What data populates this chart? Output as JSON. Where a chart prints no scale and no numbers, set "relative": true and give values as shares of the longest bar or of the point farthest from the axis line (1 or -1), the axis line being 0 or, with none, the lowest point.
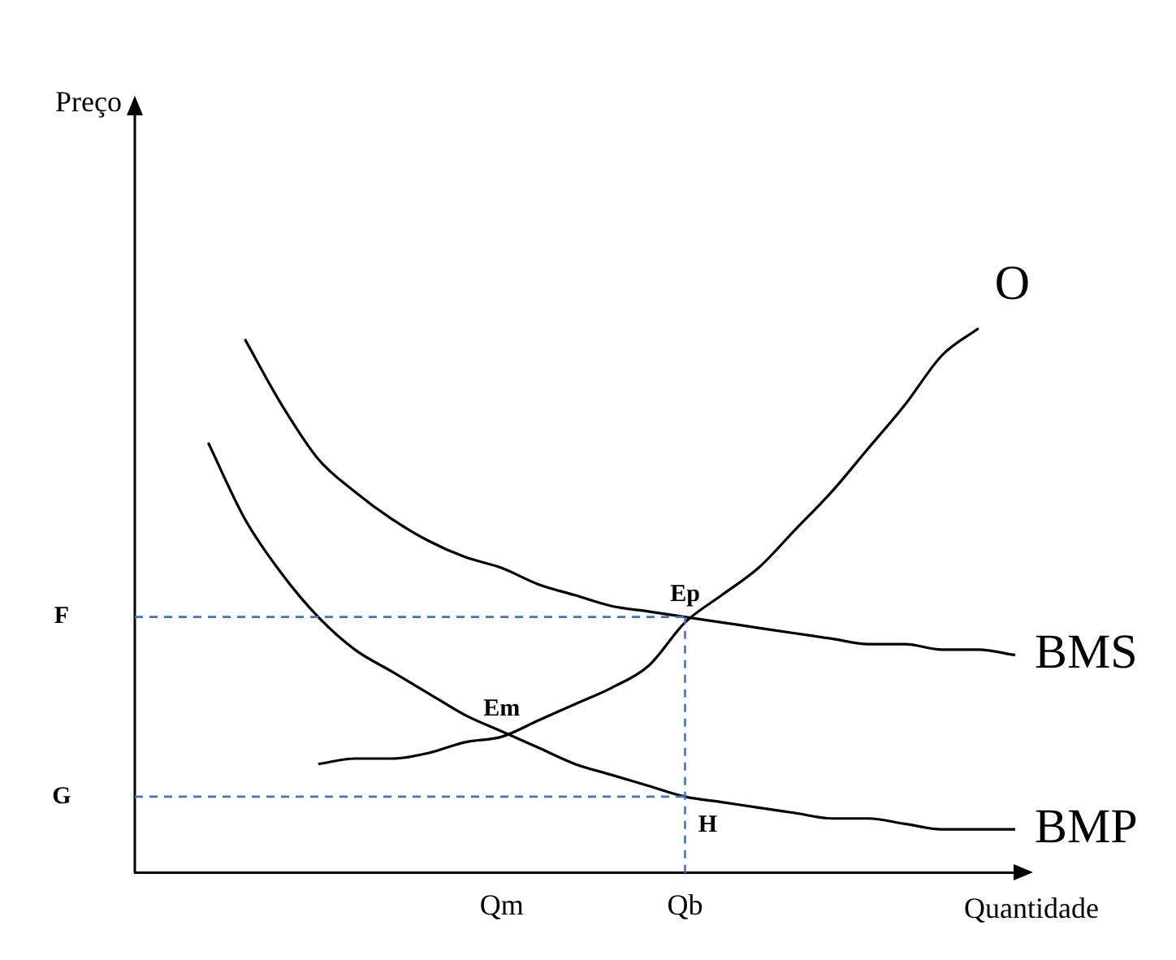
{
  "chart_data": {
    "type": "line",
    "relative": true,
    "xlabel": "Quantidade",
    "categories": [
      null,
      null,
      null,
      null,
      null,
      null,
      null,
      null,
      null,
      null,
      "Qm",
      null,
      null,
      null,
      null,
      "Qb",
      null,
      null,
      null,
      null,
      null,
      null,
      null,
      null,
      null
    ],
    "series": [
      {
        "name": "O",
        "color": "#000000",
        "values": [
          null,
          null,
          null,
          null,
          null,
          0.2,
          0.21,
          0.21,
          0.22,
          0.24,
          0.25,
          0.28,
          0.31,
          0.34,
          0.38,
          0.46,
          0.51,
          0.56,
          0.63,
          0.7,
          0.78,
          0.86,
          0.95,
          1,
          null
        ]
      },
      {
        "name": "BMS",
        "color": "#000000",
        "values": [
          null,
          null,
          null,
          0.98,
          0.86,
          0.76,
          0.7,
          0.65,
          0.61,
          0.58,
          0.56,
          0.53,
          0.51,
          0.49,
          0.48,
          0.47,
          0.46,
          0.45,
          0.44,
          0.43,
          0.42,
          0.42,
          0.41,
          0.41,
          0.4
        ]
      },
      {
        "name": "BMP",
        "color": "#000000",
        "values": [
          null,
          null,
          0.79,
          0.65,
          0.55,
          0.47,
          0.41,
          0.37,
          0.33,
          0.29,
          0.26,
          0.23,
          0.2,
          0.18,
          0.16,
          0.14,
          0.13,
          0.12,
          0.11,
          0.1,
          0.1,
          0.09,
          0.08,
          0.08,
          0.08
        ]
      }
    ],
    "ref_lines": [
      {
        "axis": "y",
        "value": 0.47,
        "label": "F",
        "color": "#4472c4",
        "line_style": "dashed"
      },
      {
        "axis": "y",
        "value": 0.14,
        "label": "G",
        "color": "#4472c4",
        "line_style": "dashed"
      },
      {
        "axis": "x",
        "value": "Qb",
        "color": "#4472c4",
        "line_style": "dashed"
      }
    ],
    "annotations": [
      "Preço",
      {
        "text": "Ep",
        "x": "Qb",
        "y": 0.47
      },
      {
        "text": "Em",
        "x": "Qm",
        "y": 0.26
      },
      {
        "text": "H",
        "x": "Qb",
        "y": 0.14
      }
    ],
    "grid": false,
    "legend": false,
    "marker": "none",
    "line_style": "solid",
    "tick_labels": "x"
  }
}
